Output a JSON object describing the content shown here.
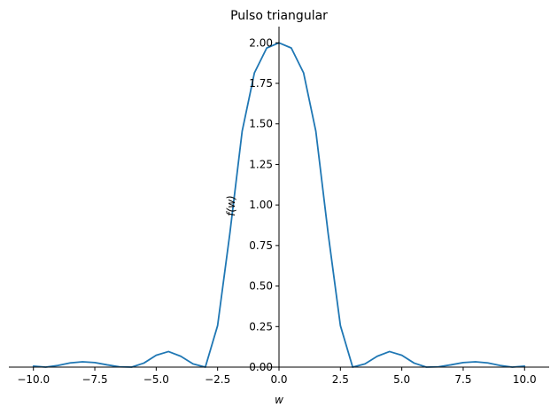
{
  "chart_data": {
    "type": "line",
    "title": "Pulso triangular",
    "xlabel": "w",
    "ylabel": "f(w)",
    "xlim": [
      -11,
      11
    ],
    "ylim": [
      0,
      2.1
    ],
    "x_ticks": [
      -10.0,
      -7.5,
      -5.0,
      -2.5,
      0.0,
      2.5,
      5.0,
      7.5,
      10.0
    ],
    "x_tick_labels": [
      "−10.0",
      "−7.5",
      "−5.0",
      "−2.5",
      "0.0",
      "2.5",
      "5.0",
      "7.5",
      "10.0"
    ],
    "y_ticks": [
      0.0,
      0.25,
      0.5,
      0.75,
      1.0,
      1.25,
      1.5,
      1.75,
      2.0
    ],
    "y_tick_labels": [
      "0.00",
      "0.25",
      "0.50",
      "0.75",
      "1.00",
      "1.25",
      "1.50",
      "1.75",
      "2.00"
    ],
    "grid": false,
    "line_color": "#1f77b4",
    "series": [
      {
        "x": [
          -10.0,
          -9.5,
          -9.0,
          -8.5,
          -8.0,
          -7.5,
          -7.0,
          -6.5,
          -6.0,
          -5.5,
          -5.0,
          -4.5,
          -4.0,
          -3.5,
          -3.0,
          -2.5,
          -2.0,
          -1.5,
          -1.0,
          -0.5,
          0.0,
          0.5,
          1.0,
          1.5,
          2.0,
          2.5,
          3.0,
          3.5,
          4.0,
          4.5,
          5.0,
          5.5,
          6.0,
          6.5,
          7.0,
          7.5,
          8.0,
          8.5,
          9.0,
          9.5,
          10.0
        ],
        "y": [
          0.006,
          0.0,
          0.01,
          0.026,
          0.033,
          0.028,
          0.014,
          0.002,
          0.0,
          0.025,
          0.073,
          0.096,
          0.067,
          0.02,
          0.0,
          0.256,
          0.826,
          1.455,
          1.815,
          1.968,
          2.0,
          1.968,
          1.815,
          1.455,
          0.826,
          0.256,
          0.0,
          0.02,
          0.067,
          0.096,
          0.073,
          0.025,
          0.0,
          0.002,
          0.014,
          0.028,
          0.033,
          0.026,
          0.01,
          0.0,
          0.006
        ]
      }
    ]
  }
}
